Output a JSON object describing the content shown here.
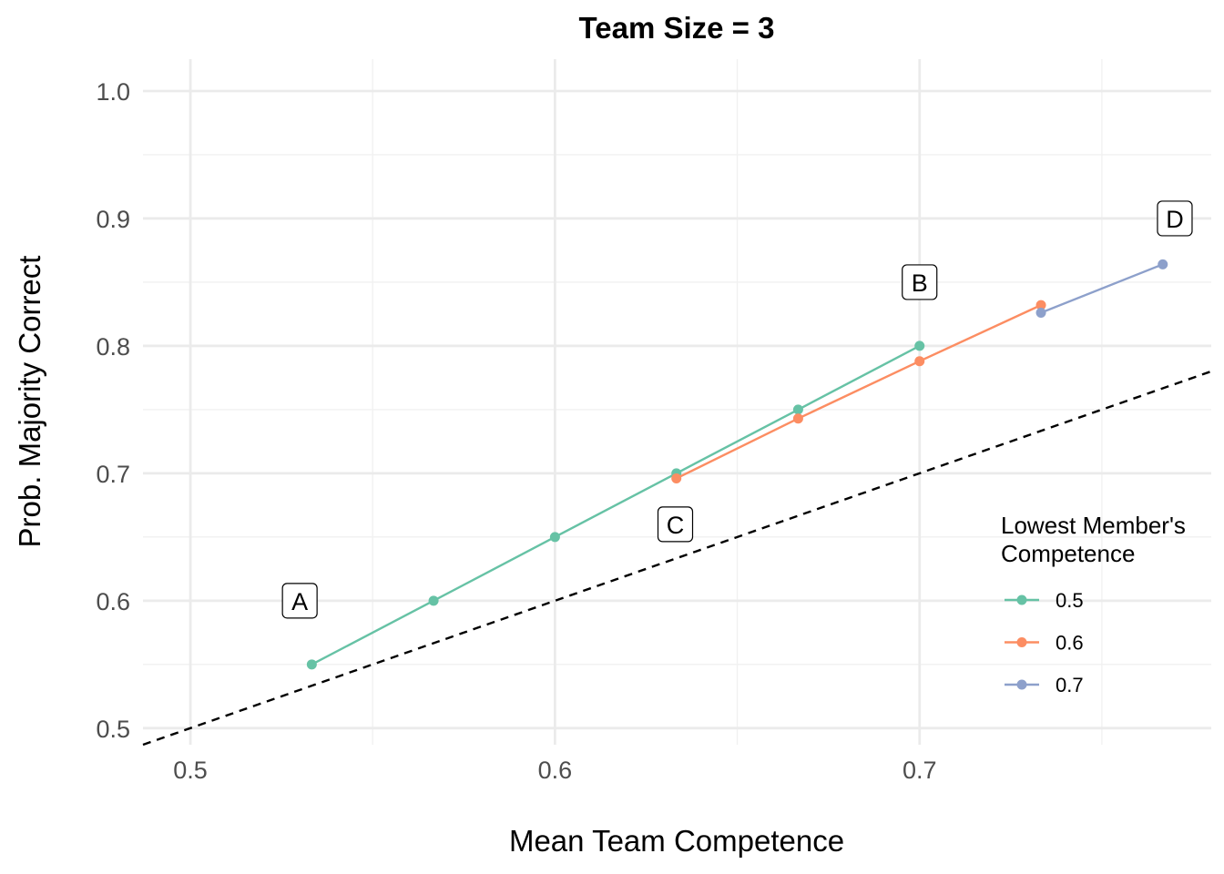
{
  "chart_data": {
    "type": "line",
    "title": "Team Size = 3",
    "xlabel": "Mean Team Competence",
    "ylabel": "Prob. Majority Correct",
    "xlim": [
      0.487,
      0.78
    ],
    "ylim": [
      0.487,
      1.025
    ],
    "x_ticks": [
      0.5,
      0.6,
      0.7
    ],
    "x_tick_labels": [
      "0.5",
      "0.6",
      "0.7"
    ],
    "y_ticks": [
      0.5,
      0.6,
      0.7,
      0.8,
      0.9,
      1.0
    ],
    "y_tick_labels": [
      "0.5",
      "0.6",
      "0.7",
      "0.8",
      "0.9",
      "1.0"
    ],
    "grid": true,
    "legend": {
      "title": "Lowest Member's\nCompetence",
      "title_lines": [
        "Lowest Member's",
        "Competence"
      ],
      "position": "right"
    },
    "series": [
      {
        "name": "0.5",
        "color": "#66c2a5",
        "x": [
          0.5333,
          0.5667,
          0.6,
          0.6333,
          0.6667,
          0.7
        ],
        "y": [
          0.55,
          0.6,
          0.65,
          0.7,
          0.75,
          0.8
        ]
      },
      {
        "name": "0.6",
        "color": "#fc8d62",
        "x": [
          0.6333,
          0.6667,
          0.7,
          0.7333
        ],
        "y": [
          0.696,
          0.743,
          0.788,
          0.832
        ]
      },
      {
        "name": "0.7",
        "color": "#8da0cb",
        "x": [
          0.7333,
          0.7667
        ],
        "y": [
          0.826,
          0.864
        ]
      }
    ],
    "reference_line": {
      "style": "dashed",
      "color": "#000000",
      "slope": 1,
      "intercept": 0
    },
    "annotations": [
      {
        "label": "A",
        "x": 0.53,
        "y": 0.6
      },
      {
        "label": "B",
        "x": 0.7,
        "y": 0.85
      },
      {
        "label": "C",
        "x": 0.633,
        "y": 0.66
      },
      {
        "label": "D",
        "x": 0.77,
        "y": 0.9
      }
    ]
  }
}
